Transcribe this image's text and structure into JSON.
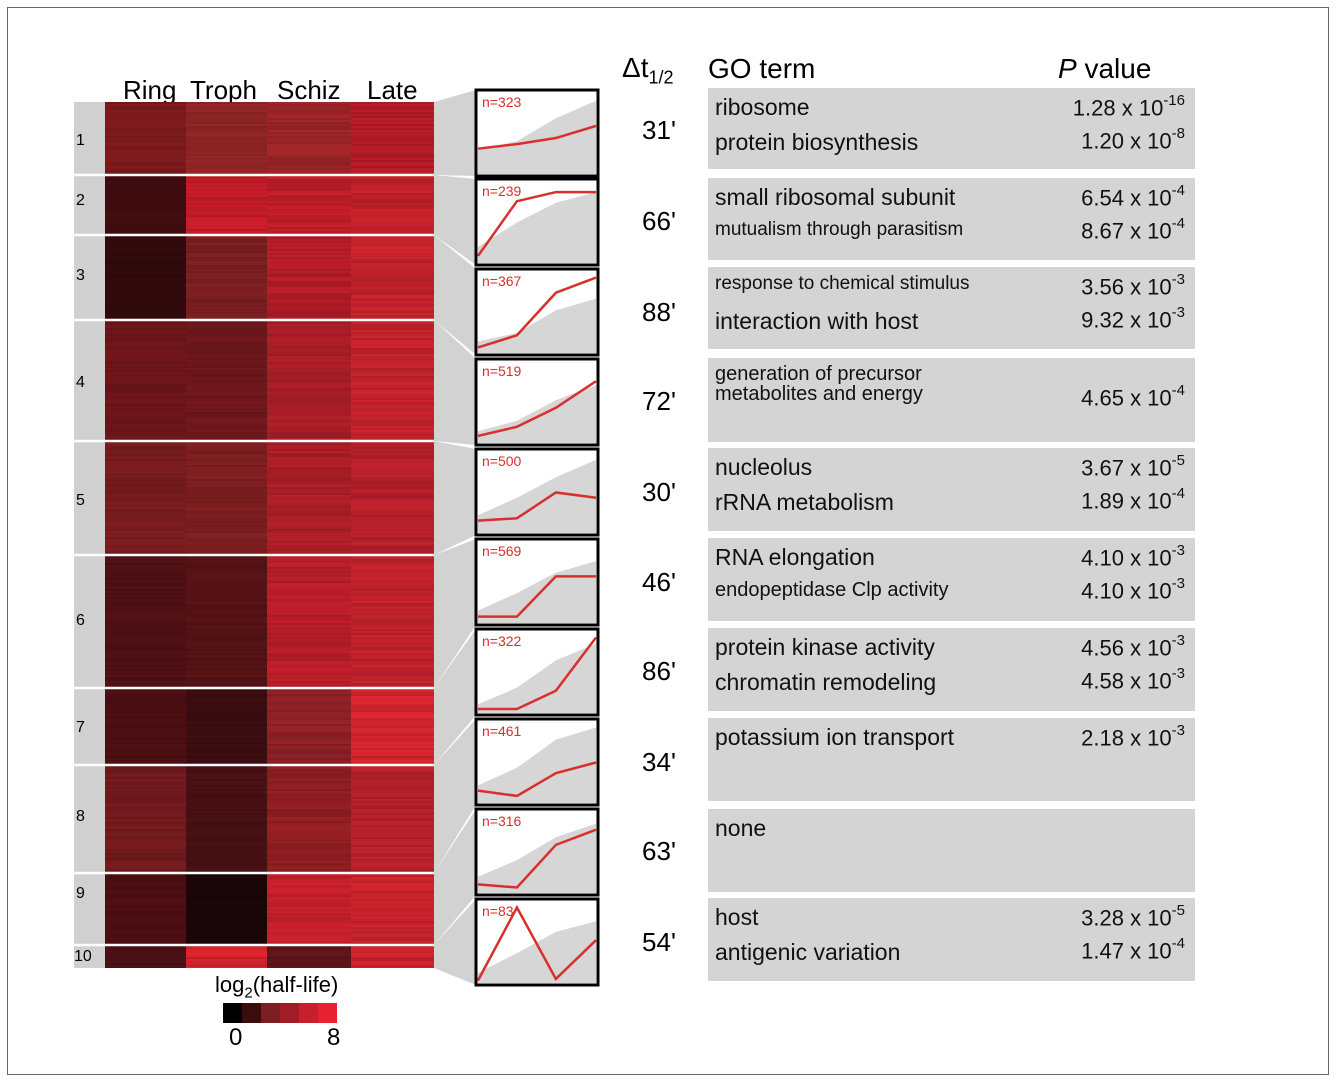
{
  "columns": [
    "Ring",
    "Troph",
    "Schiz",
    "Late"
  ],
  "delta_header_main": "Δt",
  "delta_header_sub": "1/2",
  "go_header": "GO term",
  "p_header_italic": "P",
  "p_header_rest": " value",
  "clusters": [
    {
      "id": "1",
      "n": "n=323",
      "delta": "31'",
      "heat": [
        "#7a1a1c",
        "#8c2424",
        "#9a2426",
        "#b11b26"
      ],
      "line": [
        0.32,
        0.38,
        0.46,
        0.62
      ],
      "band": [
        0.3,
        0.42,
        0.72,
        0.95
      ],
      "terms": [
        {
          "term": "ribosome",
          "p": "1.28 x 10",
          "exp": "-16"
        },
        {
          "term": "protein biosynthesis",
          "p": "1.20 x 10",
          "exp": "-8"
        }
      ]
    },
    {
      "id": "2",
      "n": "n=239",
      "delta": "66'",
      "heat": [
        "#3e0c0f",
        "#c21c28",
        "#bd1d29",
        "#c0212a"
      ],
      "line": [
        0.08,
        0.8,
        0.92,
        0.92
      ],
      "band": [
        0.2,
        0.52,
        0.78,
        0.92
      ],
      "terms": [
        {
          "term": "small ribosomal subunit",
          "p": "6.54 x 10",
          "exp": "-4"
        },
        {
          "term": "mutualism through parasitism",
          "p": "8.67 x 10",
          "exp": "-4"
        }
      ]
    },
    {
      "id": "3",
      "n": "n=367",
      "delta": "88'",
      "heat": [
        "#300a0c",
        "#7a1e20",
        "#b11c27",
        "#c0232b"
      ],
      "line": [
        0.06,
        0.22,
        0.78,
        0.98
      ],
      "band": [
        0.14,
        0.25,
        0.55,
        0.7
      ],
      "terms": [
        {
          "term": "response to chemical stimulus",
          "p": "3.56 x 10",
          "exp": "-3"
        },
        {
          "term": "interaction with host",
          "p": "9.32 x 10",
          "exp": "-3"
        }
      ]
    },
    {
      "id": "4",
      "n": "n=519",
      "delta": "72'",
      "heat": [
        "#6a1519",
        "#6d171b",
        "#a61d26",
        "#c0222b"
      ],
      "line": [
        0.08,
        0.2,
        0.45,
        0.8
      ],
      "band": [
        0.14,
        0.28,
        0.55,
        0.75
      ],
      "terms": [
        {
          "term": "generation of precursor metabolites and energy",
          "p": "4.65 x 10",
          "exp": "-4"
        }
      ]
    },
    {
      "id": "5",
      "n": "n=500",
      "delta": "30'",
      "heat": [
        "#761c1e",
        "#7c1e20",
        "#aa1e26",
        "#b5202a"
      ],
      "line": [
        0.15,
        0.18,
        0.52,
        0.45
      ],
      "band": [
        0.22,
        0.45,
        0.72,
        0.95
      ],
      "terms": [
        {
          "term": "nucleolus",
          "p": "3.67 x 10",
          "exp": "-5"
        },
        {
          "term": "rRNA metabolism",
          "p": "1.89 x 10",
          "exp": "-4"
        }
      ]
    },
    {
      "id": "6",
      "n": "n=569",
      "delta": "46'",
      "heat": [
        "#4e1014",
        "#541215",
        "#b51d28",
        "#be222b"
      ],
      "line": [
        0.07,
        0.07,
        0.6,
        0.6
      ],
      "band": [
        0.15,
        0.38,
        0.65,
        0.8
      ],
      "terms": [
        {
          "term": "RNA elongation",
          "p": "4.10 x 10",
          "exp": "-3"
        },
        {
          "term": "endopeptidase Clp activity",
          "p": "4.10 x 10",
          "exp": "-3"
        }
      ]
    },
    {
      "id": "7",
      "n": "n=322",
      "delta": "86'",
      "heat": [
        "#4a0f12",
        "#3a0d10",
        "#8c2125",
        "#d0252e"
      ],
      "line": [
        0.04,
        0.04,
        0.28,
        0.98
      ],
      "band": [
        0.1,
        0.32,
        0.68,
        0.9
      ],
      "terms": [
        {
          "term": "protein kinase activity",
          "p": "4.56 x 10",
          "exp": "-3"
        },
        {
          "term": "chromatin remodeling",
          "p": "4.58 x 10",
          "exp": "-3"
        }
      ]
    },
    {
      "id": "8",
      "n": "n=461",
      "delta": "34'",
      "heat": [
        "#701a1d",
        "#471014",
        "#8f1e22",
        "#b3212a"
      ],
      "line": [
        0.15,
        0.08,
        0.38,
        0.52
      ],
      "band": [
        0.22,
        0.45,
        0.82,
        0.98
      ],
      "terms": [
        {
          "term": "potassium ion transport",
          "p": "2.18 x 10",
          "exp": "-3"
        }
      ]
    },
    {
      "id": "9",
      "n": "n=316",
      "delta": "63'",
      "heat": [
        "#4c0f13",
        "#1a0608",
        "#c01f2a",
        "#c4232c"
      ],
      "line": [
        0.1,
        0.06,
        0.62,
        0.82
      ],
      "band": [
        0.2,
        0.42,
        0.72,
        0.9
      ],
      "terms": [
        {
          "term": "none",
          "p": "",
          "exp": ""
        }
      ]
    },
    {
      "id": "10",
      "n": "n=83",
      "delta": "54'",
      "heat": [
        "#4a1014",
        "#d0232d",
        "#5a1418",
        "#c8232c"
      ],
      "line": [
        0.02,
        0.98,
        0.04,
        0.55
      ],
      "band": [
        0.12,
        0.38,
        0.66,
        0.8
      ],
      "terms": [
        {
          "term": "host",
          "p": "3.28 x 10",
          "exp": "-5"
        },
        {
          "term": "antigenic variation",
          "p": "1.47 x 10",
          "exp": "-4"
        }
      ]
    }
  ],
  "legend": {
    "title_main": "log",
    "title_sub": "2",
    "title_rest": "(half-life)",
    "min_label": "0",
    "max_label": "8",
    "colors": [
      "#000000",
      "#3d0b0d",
      "#7a1e21",
      "#a11d25",
      "#c81f2c",
      "#e8212e"
    ]
  }
}
